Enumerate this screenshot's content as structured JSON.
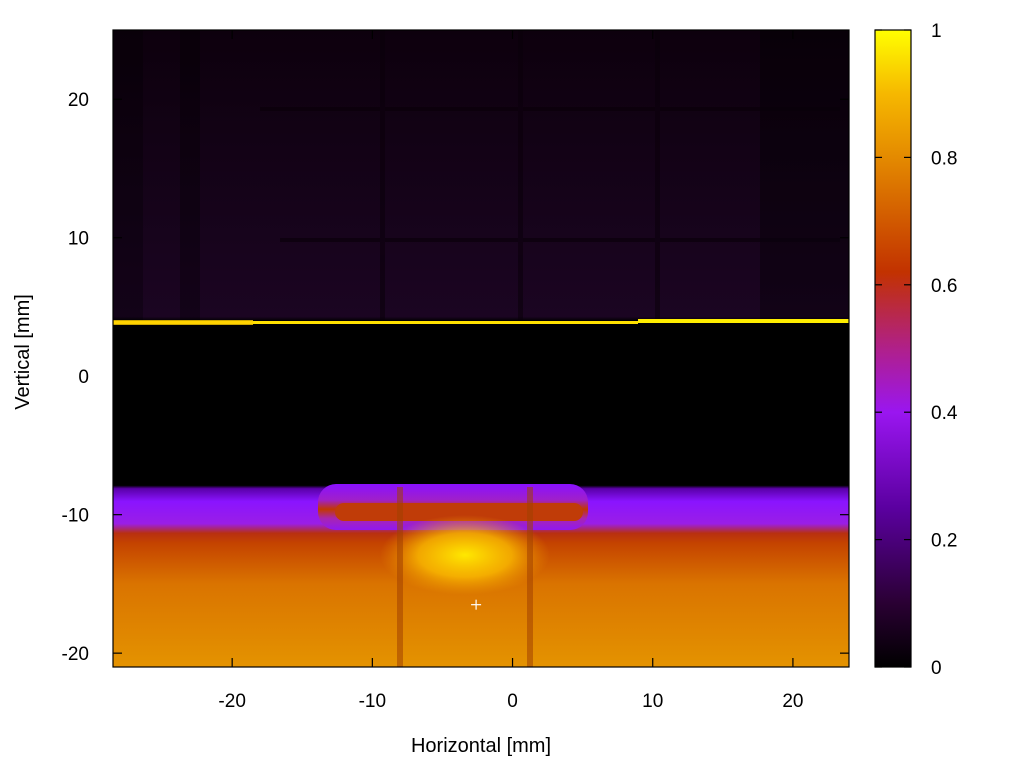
{
  "chart_data": {
    "type": "heatmap",
    "title": "",
    "xlabel": "Horizontal [mm]",
    "ylabel": "Vertical [mm]",
    "xlim": [
      -28.5,
      24
    ],
    "ylim": [
      -21,
      25
    ],
    "x_ticks": [
      -20,
      -10,
      0,
      10,
      20
    ],
    "x_tick_labels": [
      "-20",
      "-10",
      "0",
      "10",
      "20"
    ],
    "y_ticks": [
      -20,
      -10,
      0,
      10,
      20
    ],
    "y_tick_labels": [
      "-20",
      "-10",
      "0",
      "10",
      "20"
    ],
    "colorbar": {
      "min": 0,
      "max": 1,
      "ticks": [
        0,
        0.2,
        0.4,
        0.6,
        0.8,
        1
      ],
      "tick_labels": [
        "0",
        "0.2",
        "0.4",
        "0.6",
        "0.8",
        "1"
      ],
      "palette": [
        "#000000",
        "#3a0040",
        "#8000ff",
        "#c02a00",
        "#e07a00",
        "#ffd000",
        "#ffff00"
      ]
    },
    "regions": [
      {
        "name": "upper dark grid region",
        "y_range": [
          4.2,
          25
        ],
        "intensity": 0.05
      },
      {
        "name": "bright line",
        "y": 4.1,
        "intensity": 1.0
      },
      {
        "name": "dark gap",
        "y_range": [
          -8.5,
          4
        ],
        "intensity": 0.0
      },
      {
        "name": "violet transition band",
        "y_range": [
          -11.5,
          -8.5
        ],
        "intensity": 0.3
      },
      {
        "name": "bright lower region",
        "y_range": [
          -21,
          -11
        ],
        "intensity": 0.85
      },
      {
        "name": "hot spot",
        "x": -3.5,
        "y": -13.5,
        "intensity": 1.0
      }
    ],
    "marker": {
      "symbol": "+",
      "x": -2.6,
      "y": -16.5
    },
    "grid": false,
    "legend": "none"
  }
}
